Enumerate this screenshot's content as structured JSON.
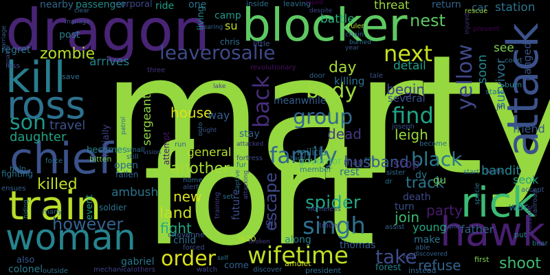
{
  "words": [
    {
      "text": "marty",
      "color": "#95d840"
    },
    {
      "text": "fort",
      "color": "#95d840"
    },
    {
      "text": "dragon",
      "color": "#482475"
    },
    {
      "text": "blocker",
      "color": "#5ec962"
    },
    {
      "text": "kill",
      "color": "#287d8e"
    },
    {
      "text": "ross",
      "color": "#2d718e"
    },
    {
      "text": "chief",
      "color": "#3b528b"
    },
    {
      "text": "train",
      "color": "#b8de29"
    },
    {
      "text": "woman",
      "color": "#25848e"
    },
    {
      "text": "attack",
      "color": "#3b528b"
    },
    {
      "text": "rick",
      "color": "#3cbb75"
    },
    {
      "text": "hawk",
      "color": "#481f70"
    },
    {
      "text": "leaverosalie",
      "color": "#3e4a89"
    },
    {
      "text": "next",
      "color": "#c8e020"
    },
    {
      "text": "singh",
      "color": "#2d708e"
    },
    {
      "text": "wifetime",
      "color": "#bddf26"
    },
    {
      "text": "order",
      "color": "#d8e219"
    },
    {
      "text": "family",
      "color": "#31688e"
    },
    {
      "text": "body",
      "color": "#9dd93b"
    },
    {
      "text": "group",
      "color": "#31688e"
    },
    {
      "text": "find",
      "color": "#20a386"
    },
    {
      "text": "black",
      "color": "#2a788e"
    },
    {
      "text": "yellow",
      "color": "#3f4889"
    },
    {
      "text": "back",
      "color": "#472d7b"
    },
    {
      "text": "son",
      "color": "#1f988b"
    },
    {
      "text": "take",
      "color": "#3e4c8a"
    },
    {
      "text": "however",
      "color": "#33638d"
    },
    {
      "text": "killed",
      "color": "#c2df23"
    },
    {
      "text": "spider",
      "color": "#21a685"
    },
    {
      "text": "escape",
      "color": "#3e4989"
    },
    {
      "text": "zombie",
      "color": "#b5de2b"
    },
    {
      "text": "day",
      "color": "#a8db34"
    },
    {
      "text": "nest",
      "color": "#5ec962"
    },
    {
      "text": "track",
      "color": "#2a768e"
    },
    {
      "text": "husband",
      "color": "#38588c"
    },
    {
      "text": "refuse",
      "color": "#33638d"
    },
    {
      "text": "shoot",
      "color": "#3fbc73"
    },
    {
      "text": "another",
      "color": "#a5db36"
    },
    {
      "text": "land",
      "color": "#c8e020"
    },
    {
      "text": "fight",
      "color": "#22a785"
    },
    {
      "text": "new",
      "color": "#dde318"
    },
    {
      "text": "house",
      "color": "#dde318"
    },
    {
      "text": "travel",
      "color": "#3b528b"
    },
    {
      "text": "daughter",
      "color": "#20a486"
    },
    {
      "text": "general",
      "color": "#b5de2b"
    },
    {
      "text": "dead",
      "color": "#453882"
    },
    {
      "text": "leigh",
      "color": "#9bd93c"
    },
    {
      "text": "begin",
      "color": "#424086"
    },
    {
      "text": "join",
      "color": "#3dbc74"
    },
    {
      "text": "soon",
      "color": "#24868e"
    },
    {
      "text": "survivor",
      "color": "#2c728e"
    },
    {
      "text": "sergeant",
      "color": "#8ed645"
    },
    {
      "text": "ambush",
      "color": "#2b758e"
    },
    {
      "text": "stop",
      "color": "#46337f"
    },
    {
      "text": "party",
      "color": "#481b6d"
    },
    {
      "text": "arrives",
      "color": "#26818e"
    },
    {
      "text": "detail",
      "color": "#1fa188"
    },
    {
      "text": "bandit",
      "color": "#23898e"
    },
    {
      "text": "friend",
      "color": "#38598c"
    },
    {
      "text": "seok",
      "color": "#1fa287"
    },
    {
      "text": "war",
      "color": "#297b8e"
    },
    {
      "text": "father",
      "color": "#34608d"
    },
    {
      "text": "young",
      "color": "#22a884"
    },
    {
      "text": "station",
      "color": "#2c738e"
    },
    {
      "text": "car",
      "color": "#306a8e"
    },
    {
      "text": "threat",
      "color": "#9bd93c"
    },
    {
      "text": "battle",
      "color": "#2db27d"
    },
    {
      "text": "return",
      "color": "#33638d"
    },
    {
      "text": "see",
      "color": "#7ad151"
    },
    {
      "text": "hanged",
      "color": "#3b528b"
    },
    {
      "text": "killing",
      "color": "#2c718e"
    },
    {
      "text": "regret",
      "color": "#2a788e"
    },
    {
      "text": "post",
      "color": "#277f8e"
    },
    {
      "text": "camp",
      "color": "#1e9b8a"
    },
    {
      "text": "one",
      "color": "#2c738e"
    },
    {
      "text": "ride",
      "color": "#1fa088"
    },
    {
      "text": "nearby",
      "color": "#31678e"
    },
    {
      "text": "passenger",
      "color": "#238a8d"
    },
    {
      "text": "corporal",
      "color": "#3e4989"
    },
    {
      "text": "su",
      "color": "#c0df25"
    },
    {
      "text": "chris",
      "color": "#2e6e8e"
    },
    {
      "text": "living",
      "color": "#25858e"
    },
    {
      "text": "rest",
      "color": "#2c728e"
    },
    {
      "text": "man",
      "color": "#414487"
    },
    {
      "text": "militia",
      "color": "#2a778e"
    },
    {
      "text": "governor",
      "color": "#5ec962"
    },
    {
      "text": "stay",
      "color": "#34618d"
    },
    {
      "text": "way",
      "color": "#355f8d"
    },
    {
      "text": "several",
      "color": "#3b528b"
    },
    {
      "text": "meanwhile",
      "color": "#34618d"
    },
    {
      "text": "gu",
      "color": "#74d055"
    },
    {
      "text": "dy",
      "color": "#2a788e"
    },
    {
      "text": "future",
      "color": "#3c4f8a"
    },
    {
      "text": "death",
      "color": "#3e4a89"
    },
    {
      "text": "turn",
      "color": "#3b528b"
    },
    {
      "text": "make",
      "color": "#2b748e"
    },
    {
      "text": "along",
      "color": "#26818e"
    },
    {
      "text": "thomas",
      "color": "#34608d"
    },
    {
      "text": "gil",
      "color": "#3f4788"
    },
    {
      "text": "woo",
      "color": "#b5de2b"
    },
    {
      "text": "gabriel",
      "color": "#29798e"
    },
    {
      "text": "colonel",
      "color": "#297a8e"
    },
    {
      "text": "also",
      "color": "#38588c"
    },
    {
      "text": "come",
      "color": "#34618d"
    },
    {
      "text": "forest",
      "color": "#26828e"
    },
    {
      "text": "child",
      "color": "#2e6e8e"
    },
    {
      "text": "becomes",
      "color": "#26828e"
    },
    {
      "text": "open",
      "color": "#2e6f8e"
    },
    {
      "text": "event",
      "color": "#1fa088"
    },
    {
      "text": "initially",
      "color": "#414487"
    },
    {
      "text": "attempt",
      "color": "#48186a"
    },
    {
      "text": "bitten",
      "color": "#7ad151"
    },
    {
      "text": "fallen",
      "color": "#31688e"
    },
    {
      "text": "soldier",
      "color": "#2a778e"
    },
    {
      "text": "fighting",
      "color": "#2c738e"
    },
    {
      "text": "carriage",
      "color": "#365c8d"
    },
    {
      "text": "loss",
      "color": "#3f4788"
    },
    {
      "text": "help",
      "color": "#2c728e"
    },
    {
      "text": "save",
      "color": "#2e6e8e"
    },
    {
      "text": "patrol",
      "color": "#31688e"
    },
    {
      "text": "three",
      "color": "#46337f"
    },
    {
      "text": "lake",
      "color": "#414487"
    },
    {
      "text": "inside",
      "color": "#2d708e"
    },
    {
      "text": "leaving",
      "color": "#2e6e8e"
    },
    {
      "text": "ruler",
      "color": "#b5de2b"
    },
    {
      "text": "chain",
      "color": "#32648e"
    },
    {
      "text": "little",
      "color": "#3b528b"
    },
    {
      "text": "revolutionary",
      "color": "#471063"
    },
    {
      "text": "door",
      "color": "#32648e"
    },
    {
      "text": "tale",
      "color": "#3b528b"
    },
    {
      "text": "rescue",
      "color": "#9bd93c"
    },
    {
      "text": "prevent",
      "color": "#440154"
    },
    {
      "text": "court",
      "color": "#31688e"
    },
    {
      "text": "burn",
      "color": "#25858e"
    },
    {
      "text": "state",
      "color": "#2c728e"
    },
    {
      "text": "jin",
      "color": "#3f4788"
    },
    {
      "text": "tactic",
      "color": "#39568c"
    },
    {
      "text": "start",
      "color": "#2e6e8e"
    },
    {
      "text": "accept",
      "color": "#38588c"
    },
    {
      "text": "specie",
      "color": "#2a778e"
    },
    {
      "text": "railroad",
      "color": "#3b528b"
    },
    {
      "text": "possible",
      "color": "#443a83"
    },
    {
      "text": "put",
      "color": "#277f8e"
    },
    {
      "text": "bear",
      "color": "#2c728e"
    },
    {
      "text": "instead",
      "color": "#32648e"
    },
    {
      "text": "first",
      "color": "#7fd34e"
    },
    {
      "text": "president",
      "color": "#306a8e"
    },
    {
      "text": "amulet",
      "color": "#d0e11c"
    },
    {
      "text": "discover",
      "color": "#33638d"
    },
    {
      "text": "outside",
      "color": "#2d708e"
    },
    {
      "text": "mechanical",
      "color": "#404588"
    },
    {
      "text": "others",
      "color": "#443983"
    },
    {
      "text": "watch",
      "color": "#414487"
    },
    {
      "text": "self",
      "color": "#2c728e"
    },
    {
      "text": "broken",
      "color": "#433e85"
    },
    {
      "text": "forced",
      "color": "#3b528b"
    },
    {
      "text": "cheyenne",
      "color": "#38598c"
    },
    {
      "text": "training",
      "color": "#424086"
    },
    {
      "text": "set",
      "color": "#2e6e8e"
    },
    {
      "text": "home",
      "color": "#31688e"
    },
    {
      "text": "alert",
      "color": "#3b528b"
    },
    {
      "text": "ensues",
      "color": "#34618d"
    },
    {
      "text": "force",
      "color": "#2c728e"
    },
    {
      "text": "small",
      "color": "#2e6e8e"
    },
    {
      "text": "still",
      "color": "#32648e"
    },
    {
      "text": "fortress",
      "color": "#3e4989"
    },
    {
      "text": "fur",
      "color": "#2d718e"
    },
    {
      "text": "member",
      "color": "#29798e"
    },
    {
      "text": "sister",
      "color": "#31688e"
    },
    {
      "text": "say",
      "color": "#2d708e"
    },
    {
      "text": "joseph",
      "color": "#3b528b"
    },
    {
      "text": "become",
      "color": "#2e6e8e"
    },
    {
      "text": "trader",
      "color": "#414487"
    },
    {
      "text": "homeless",
      "color": "#3e4c8a"
    },
    {
      "text": "assist",
      "color": "#34618d"
    },
    {
      "text": "upon",
      "color": "#3b528b"
    },
    {
      "text": "able",
      "color": "#34618d"
    },
    {
      "text": "fury",
      "color": "#3f4788"
    },
    {
      "text": "many",
      "color": "#31688e"
    },
    {
      "text": "hiding",
      "color": "#2c728e"
    },
    {
      "text": "hand",
      "color": "#2e6e8e"
    },
    {
      "text": "captive",
      "color": "#31688e"
    },
    {
      "text": "attacking",
      "color": "#3e4989"
    },
    {
      "text": "run",
      "color": "#34618d"
    },
    {
      "text": "night",
      "color": "#3b528b"
    },
    {
      "text": "onto",
      "color": "#2e6e8e"
    },
    {
      "text": "attacked",
      "color": "#414487"
    },
    {
      "text": "raped",
      "color": "#440154"
    },
    {
      "text": "despite",
      "color": "#3e4a89"
    },
    {
      "text": "burned",
      "color": "#2c728e"
    },
    {
      "text": "year",
      "color": "#3b528b"
    },
    {
      "text": "clear",
      "color": "#31688e"
    },
    {
      "text": "manage",
      "color": "#3b528b"
    },
    {
      "text": "hearing",
      "color": "#34618d"
    },
    {
      "text": "unable",
      "color": "#3e4a89"
    },
    {
      "text": "injured",
      "color": "#46337f"
    },
    {
      "text": "discovered",
      "color": "#34618d"
    },
    {
      "text": "dr",
      "color": "#2c728e"
    },
    {
      "text": "vision",
      "color": "#3b528b"
    }
  ]
}
